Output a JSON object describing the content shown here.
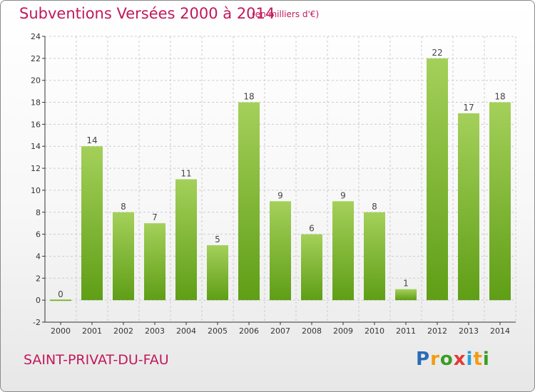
{
  "title": "Subventions Versées 2000 à 2014",
  "subtitle": "(en milliers d'€)",
  "commune": "SAINT-PRIVAT-DU-FAU",
  "logo": {
    "letters": [
      "P",
      "r",
      "o",
      "x",
      "i",
      "t",
      "i"
    ],
    "colors": [
      "#2a6bb5",
      "#f39c12",
      "#3a9d23",
      "#e53935",
      "#2a9fd8",
      "#f39c12",
      "#3a9d23"
    ]
  },
  "colors": {
    "bar_light": "#a4d05a",
    "bar_dark": "#5f9e16",
    "grid": "#cccccc",
    "axis": "#333333",
    "title": "#c2185b"
  },
  "chart_data": {
    "type": "bar",
    "title": "Subventions Versées 2000 à 2014",
    "subtitle": "(en milliers d'€)",
    "categories": [
      "2000",
      "2001",
      "2002",
      "2003",
      "2004",
      "2005",
      "2006",
      "2007",
      "2008",
      "2009",
      "2010",
      "2011",
      "2012",
      "2013",
      "2014"
    ],
    "values": [
      0,
      14,
      8,
      7,
      11,
      5,
      18,
      9,
      6,
      9,
      8,
      1,
      22,
      17,
      18
    ],
    "ylim": [
      -2,
      24
    ],
    "yticks": [
      -2,
      0,
      2,
      4,
      6,
      8,
      10,
      12,
      14,
      16,
      18,
      20,
      22,
      24
    ],
    "grid": true,
    "data_labels": true
  }
}
